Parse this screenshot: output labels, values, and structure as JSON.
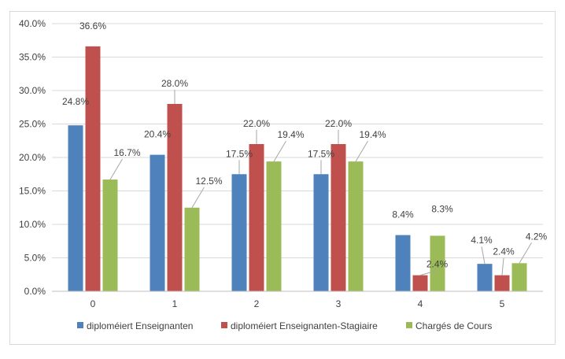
{
  "chart_data": {
    "type": "bar",
    "title": "",
    "xlabel": "",
    "ylabel": "",
    "categories": [
      "0",
      "1",
      "2",
      "3",
      "4",
      "5"
    ],
    "series": [
      {
        "name": "diploméiert Enseignanten",
        "color": "#4f81bd",
        "values": [
          24.8,
          20.4,
          17.5,
          17.5,
          8.4,
          4.1
        ]
      },
      {
        "name": "diploméiert Enseignanten-Stagiaire",
        "color": "#c0504d",
        "values": [
          36.6,
          28.0,
          22.0,
          22.0,
          2.4,
          2.4
        ]
      },
      {
        "name": "Chargés de Cours",
        "color": "#9bbb59",
        "values": [
          16.7,
          12.5,
          19.4,
          19.4,
          8.3,
          4.2
        ]
      }
    ],
    "ylim": [
      0,
      40
    ],
    "y_ticks": [
      0,
      5,
      10,
      15,
      20,
      25,
      30,
      35,
      40
    ],
    "y_tick_format": "percent_1dp",
    "gridlines": true,
    "legend_position": "bottom",
    "data_labels": true
  }
}
